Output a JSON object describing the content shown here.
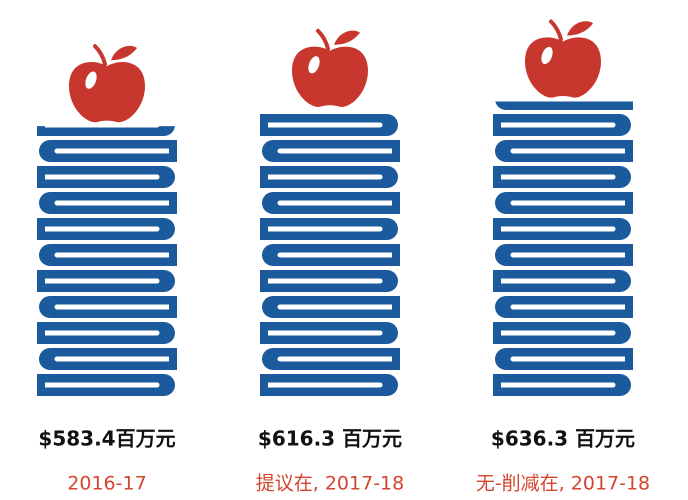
{
  "chart_data": {
    "type": "bar",
    "categories": [
      "2016-17",
      "提议在, 2017-18",
      "无-削减在, 2017-18"
    ],
    "values": [
      583.4,
      616.3,
      636.3
    ],
    "value_labels": [
      "$583.4百万元",
      "$616.3 百万元",
      "$636.3 百万元"
    ],
    "color": "#1c5a9e"
  }
}
